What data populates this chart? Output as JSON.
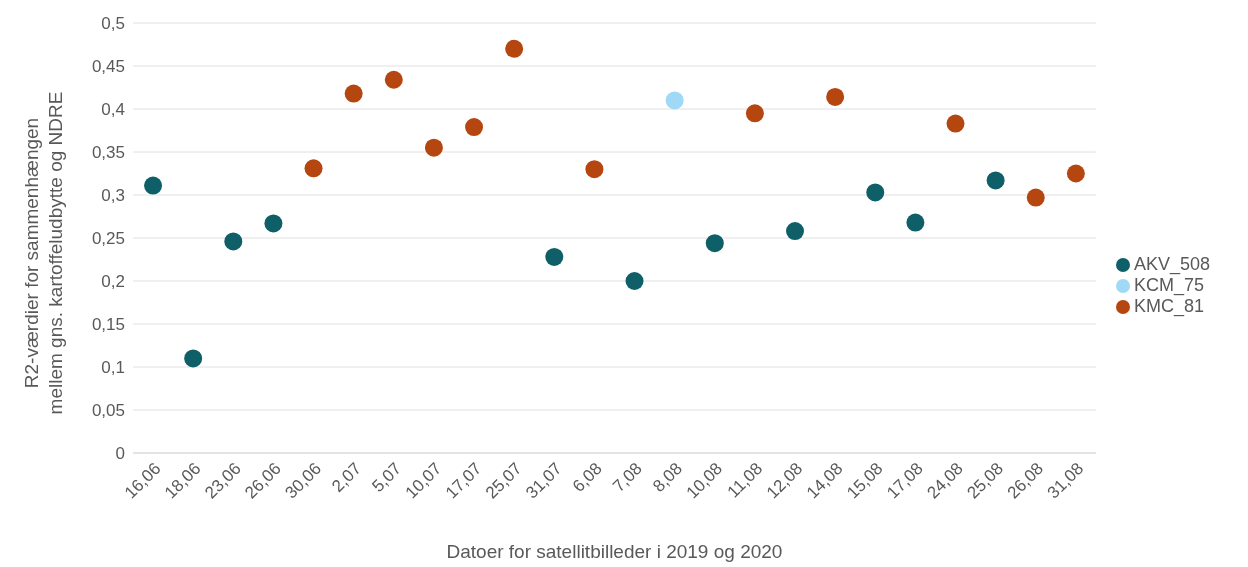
{
  "chart_data": {
    "type": "scatter",
    "xlabel": "Datoer for satellitbilleder i 2019 og 2020",
    "ylabel": "R2-værdier for sammenhængen mellem gns. kartoffeludbytte og NDRE",
    "categories": [
      "16,06",
      "18,06",
      "23,06",
      "26,06",
      "30,06",
      "2,07",
      "5,07",
      "10,07",
      "17,07",
      "25,07",
      "31,07",
      "6,08",
      "7,08",
      "8,08",
      "10,08",
      "11,08",
      "12,08",
      "14,08",
      "15,08",
      "17,08",
      "24,08",
      "25,08",
      "26,08",
      "31,08"
    ],
    "series": [
      {
        "name": "AKV_508",
        "color": "#0e5f67",
        "values": [
          0.311,
          0.11,
          0.246,
          0.267,
          null,
          null,
          null,
          null,
          null,
          null,
          0.228,
          null,
          0.2,
          null,
          0.244,
          null,
          0.258,
          null,
          0.303,
          0.268,
          null,
          0.317,
          null,
          null
        ]
      },
      {
        "name": "KCM_75",
        "color": "#9fd9f6",
        "values": [
          null,
          null,
          null,
          null,
          null,
          null,
          null,
          null,
          null,
          null,
          null,
          null,
          null,
          0.41,
          null,
          null,
          null,
          null,
          null,
          null,
          null,
          null,
          null,
          null
        ]
      },
      {
        "name": "KMC_81",
        "color": "#b5460f",
        "values": [
          null,
          null,
          null,
          null,
          0.331,
          0.418,
          0.434,
          0.355,
          0.379,
          0.47,
          null,
          0.33,
          null,
          null,
          null,
          0.395,
          null,
          0.414,
          null,
          null,
          0.383,
          null,
          0.297,
          0.325
        ]
      }
    ],
    "ylim": [
      0,
      0.5
    ],
    "yticks": [
      0,
      {
        "value": 0.05,
        "label": "0,05"
      },
      {
        "value": 0.1,
        "label": "0,1"
      },
      {
        "value": 0.15,
        "label": "0,15"
      },
      {
        "value": 0.2,
        "label": "0,2"
      },
      {
        "value": 0.25,
        "label": "0,25"
      },
      {
        "value": 0.3,
        "label": "0,3"
      },
      {
        "value": 0.35,
        "label": "0,35"
      },
      {
        "value": 0.4,
        "label": "0,4"
      },
      {
        "value": 0.45,
        "label": "0,45"
      },
      {
        "value": 0.5,
        "label": "0,5"
      }
    ],
    "grid": "y",
    "legend": "right",
    "marker": "circle"
  }
}
